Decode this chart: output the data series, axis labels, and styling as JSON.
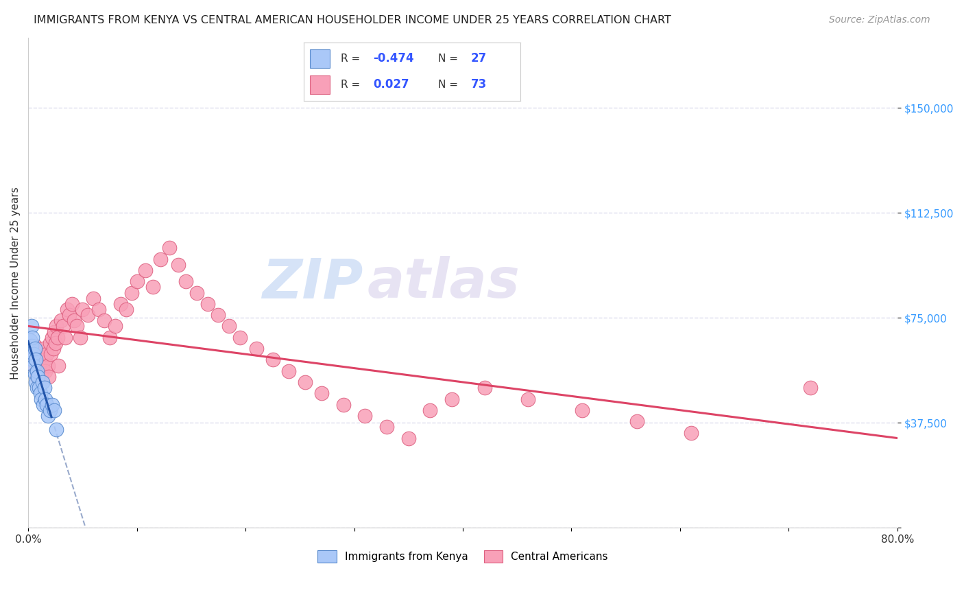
{
  "title": "IMMIGRANTS FROM KENYA VS CENTRAL AMERICAN HOUSEHOLDER INCOME UNDER 25 YEARS CORRELATION CHART",
  "source": "Source: ZipAtlas.com",
  "ylabel": "Householder Income Under 25 years",
  "xlim": [
    0,
    0.8
  ],
  "ylim": [
    0,
    175000
  ],
  "yticks": [
    0,
    37500,
    75000,
    112500,
    150000
  ],
  "ytick_labels": [
    "",
    "$37,500",
    "$75,000",
    "$112,500",
    "$150,000"
  ],
  "xticks": [
    0.0,
    0.1,
    0.2,
    0.3,
    0.4,
    0.5,
    0.6,
    0.7,
    0.8
  ],
  "xtick_labels": [
    "0.0%",
    "",
    "",
    "",
    "",
    "",
    "",
    "",
    "80.0%"
  ],
  "watermark_zip": "ZIP",
  "watermark_atlas": "atlas",
  "legend_R1": "-0.474",
  "legend_N1": "27",
  "legend_R2": "0.027",
  "legend_N2": "73",
  "kenya_color": "#aac8f8",
  "kenya_edge_color": "#5588cc",
  "central_color": "#f8a0b8",
  "central_edge_color": "#dd6080",
  "kenya_line_color": "#2255aa",
  "central_line_color": "#dd4466",
  "dashed_line_color": "#99aacc",
  "background_color": "#ffffff",
  "grid_color": "#ddddee",
  "kenya_x": [
    0.002,
    0.003,
    0.003,
    0.004,
    0.004,
    0.005,
    0.005,
    0.006,
    0.006,
    0.007,
    0.007,
    0.008,
    0.008,
    0.009,
    0.01,
    0.011,
    0.012,
    0.013,
    0.014,
    0.015,
    0.016,
    0.017,
    0.018,
    0.02,
    0.022,
    0.024,
    0.026
  ],
  "kenya_y": [
    67000,
    72000,
    65000,
    68000,
    60000,
    62000,
    58000,
    64000,
    55000,
    60000,
    52000,
    56000,
    50000,
    54000,
    50000,
    48000,
    46000,
    52000,
    44000,
    50000,
    46000,
    44000,
    40000,
    42000,
    44000,
    42000,
    35000
  ],
  "central_x": [
    0.004,
    0.005,
    0.006,
    0.007,
    0.008,
    0.009,
    0.01,
    0.011,
    0.012,
    0.013,
    0.014,
    0.015,
    0.016,
    0.017,
    0.018,
    0.019,
    0.02,
    0.021,
    0.022,
    0.023,
    0.024,
    0.025,
    0.026,
    0.027,
    0.028,
    0.03,
    0.032,
    0.034,
    0.036,
    0.038,
    0.04,
    0.042,
    0.045,
    0.048,
    0.05,
    0.055,
    0.06,
    0.065,
    0.07,
    0.075,
    0.08,
    0.085,
    0.09,
    0.095,
    0.1,
    0.108,
    0.115,
    0.122,
    0.13,
    0.138,
    0.145,
    0.155,
    0.165,
    0.175,
    0.185,
    0.195,
    0.21,
    0.225,
    0.24,
    0.255,
    0.27,
    0.29,
    0.31,
    0.33,
    0.35,
    0.37,
    0.39,
    0.42,
    0.46,
    0.51,
    0.56,
    0.61,
    0.72
  ],
  "central_y": [
    62000,
    58000,
    65000,
    60000,
    54000,
    56000,
    58000,
    62000,
    55000,
    58000,
    64000,
    60000,
    56000,
    62000,
    58000,
    54000,
    66000,
    62000,
    68000,
    64000,
    70000,
    66000,
    72000,
    68000,
    58000,
    74000,
    72000,
    68000,
    78000,
    76000,
    80000,
    74000,
    72000,
    68000,
    78000,
    76000,
    82000,
    78000,
    74000,
    68000,
    72000,
    80000,
    78000,
    84000,
    88000,
    92000,
    86000,
    96000,
    100000,
    94000,
    88000,
    84000,
    80000,
    76000,
    72000,
    68000,
    64000,
    60000,
    56000,
    52000,
    48000,
    44000,
    40000,
    36000,
    32000,
    42000,
    46000,
    50000,
    46000,
    42000,
    38000,
    34000,
    50000
  ]
}
